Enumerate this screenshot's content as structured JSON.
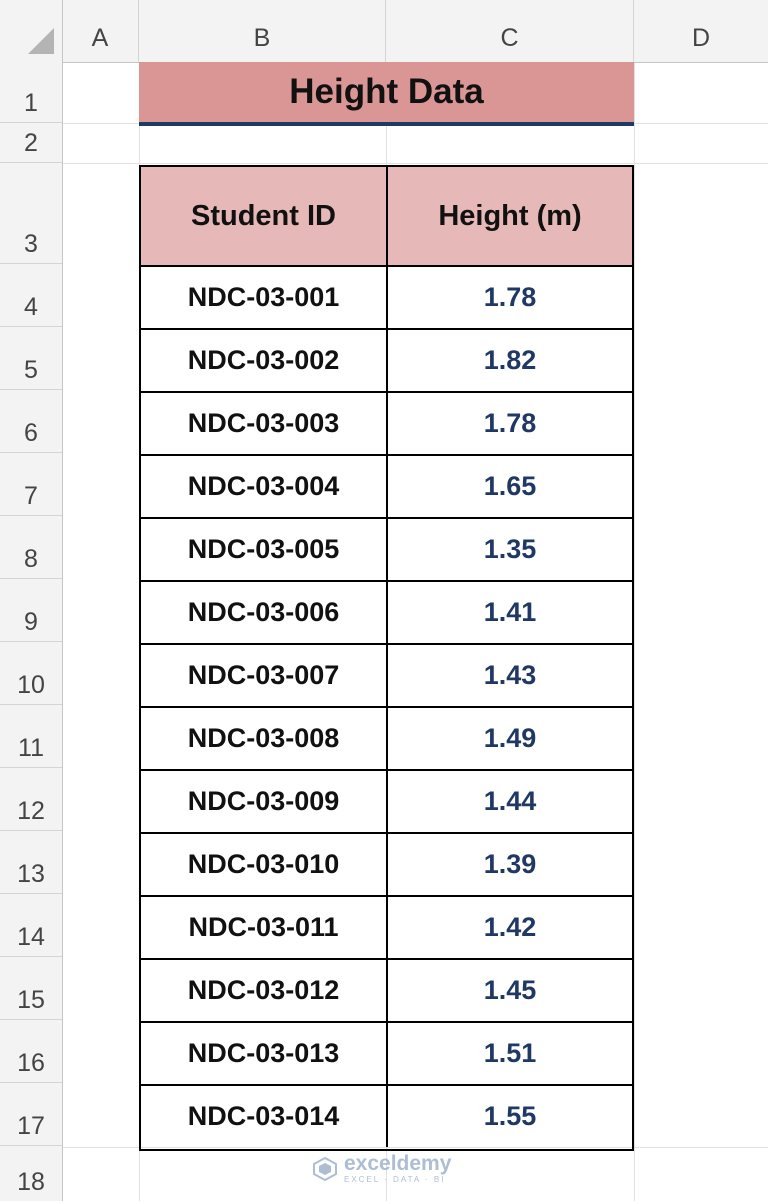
{
  "columns": [
    "A",
    "B",
    "C",
    "D"
  ],
  "rows": [
    "1",
    "2",
    "3",
    "4",
    "5",
    "6",
    "7",
    "8",
    "9",
    "10",
    "11",
    "12",
    "13",
    "14",
    "15",
    "16",
    "17",
    "18"
  ],
  "title": "Height Data",
  "table": {
    "headers": [
      "Student ID",
      "Height (m)"
    ],
    "rows": [
      [
        "NDC-03-001",
        "1.78"
      ],
      [
        "NDC-03-002",
        "1.82"
      ],
      [
        "NDC-03-003",
        "1.78"
      ],
      [
        "NDC-03-004",
        "1.65"
      ],
      [
        "NDC-03-005",
        "1.35"
      ],
      [
        "NDC-03-006",
        "1.41"
      ],
      [
        "NDC-03-007",
        "1.43"
      ],
      [
        "NDC-03-008",
        "1.49"
      ],
      [
        "NDC-03-009",
        "1.44"
      ],
      [
        "NDC-03-010",
        "1.39"
      ],
      [
        "NDC-03-011",
        "1.42"
      ],
      [
        "NDC-03-012",
        "1.45"
      ],
      [
        "NDC-03-013",
        "1.51"
      ],
      [
        "NDC-03-014",
        "1.55"
      ]
    ]
  },
  "watermark": {
    "name": "exceldemy",
    "tagline": "EXCEL · DATA · BI"
  },
  "colors": {
    "title_fill": "#da9694",
    "header_fill": "#e6b8b7",
    "value_text": "#1f3864",
    "title_underline": "#1f3864"
  }
}
